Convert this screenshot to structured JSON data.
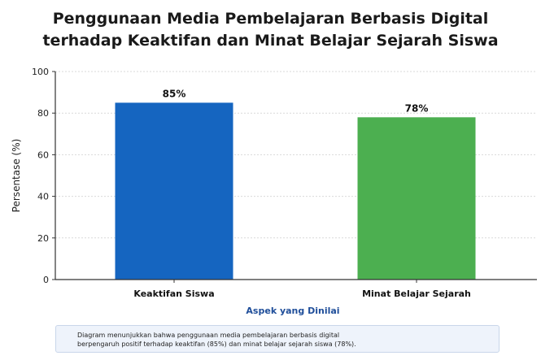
{
  "chart_data": {
    "type": "bar",
    "title_lines": [
      "Penggunaan Media Pembelajaran Berbasis Digital",
      "terhadap Keaktifan dan Minat Belajar Sejarah Siswa"
    ],
    "categories": [
      "Keaktifan Siswa",
      "Minat Belajar Sejarah"
    ],
    "values": [
      85,
      78
    ],
    "data_labels": [
      "85%",
      "78%"
    ],
    "colors": [
      "#1565c0",
      "#4caf50"
    ],
    "xlabel": "Aspek yang Dinilai",
    "ylabel": "Persentase (%)",
    "ylim": [
      0,
      100
    ],
    "yticks": [
      0,
      20,
      40,
      60,
      80,
      100
    ],
    "grid": true,
    "xlabel_color": "#1f4e9a"
  },
  "note": {
    "lines": [
      "Diagram menunjukkan bahwa penggunaan media pembelajaran berbasis digital",
      "berpengaruh positif terhadap keaktifan (85%) dan minat belajar sejarah siswa (78%)."
    ]
  }
}
